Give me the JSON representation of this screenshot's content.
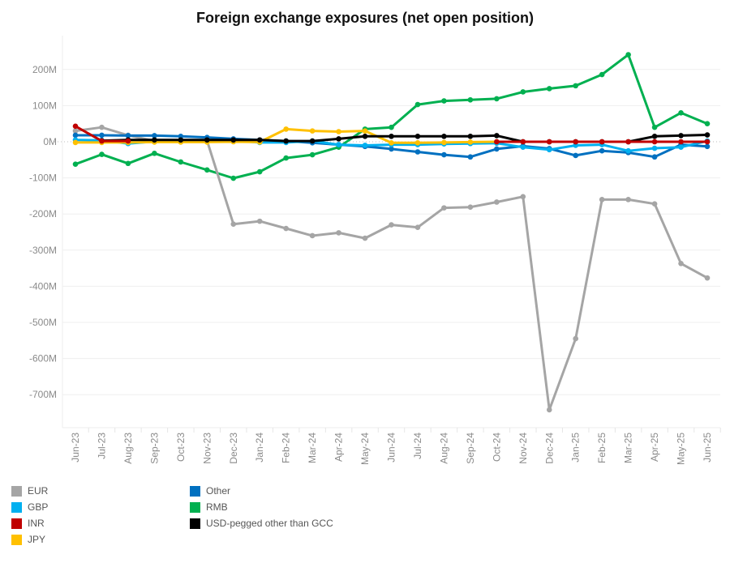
{
  "chart_data": {
    "type": "line",
    "title": "Foreign exchange exposures (net open position)",
    "xlabel": "",
    "ylabel": "",
    "ylim": [
      -790,
      260
    ],
    "yticks": [
      200,
      100,
      0,
      -100,
      -200,
      -300,
      -400,
      -500,
      -600,
      -700
    ],
    "ytick_labels": [
      "200M",
      "100M",
      "0M",
      "-100M",
      "-200M",
      "-300M",
      "-400M",
      "-500M",
      "-600M",
      "-700M"
    ],
    "categories": [
      "Jun-23",
      "Jul-23",
      "Aug-23",
      "Sep-23",
      "Oct-23",
      "Nov-23",
      "Dec-23",
      "Jan-24",
      "Feb-24",
      "Mar-24",
      "Apr-24",
      "May-24",
      "Jun-24",
      "Jul-24",
      "Aug-24",
      "Sep-24",
      "Oct-24",
      "Nov-24",
      "Dec-24",
      "Jan-25",
      "Feb-25",
      "Mar-25",
      "Apr-25",
      "May-25",
      "Jun-25"
    ],
    "grid": true,
    "legend_position": "bottom-left",
    "series": [
      {
        "name": "EUR",
        "color": "#a5a5a5",
        "values": [
          30,
          40,
          18,
          2,
          2,
          3,
          -228,
          -220,
          -240,
          -260,
          -252,
          -267,
          -230,
          -237,
          -183,
          -181,
          -167,
          -152,
          -742,
          -545,
          -160,
          -160,
          -172,
          -337,
          -377
        ]
      },
      {
        "name": "GBP",
        "color": "#00b0f0",
        "values": [
          5,
          4,
          -5,
          1,
          1,
          4,
          3,
          -2,
          -2,
          2,
          -8,
          -10,
          -8,
          -8,
          -6,
          -5,
          -4,
          -15,
          -22,
          -10,
          -8,
          -25,
          -18,
          -15,
          2
        ]
      },
      {
        "name": "INR",
        "color": "#c00000",
        "values": [
          43,
          2,
          2,
          null,
          null,
          null,
          null,
          null,
          null,
          null,
          null,
          null,
          null,
          null,
          null,
          null,
          0,
          0,
          0,
          0,
          0,
          0,
          0,
          0,
          0
        ]
      },
      {
        "name": "JPY",
        "color": "#ffc000",
        "values": [
          -2,
          -2,
          -2,
          -1,
          -1,
          -1,
          0,
          -1,
          35,
          30,
          28,
          30,
          -3,
          -3,
          -2,
          -1,
          0,
          null,
          null,
          null,
          null,
          null,
          null,
          null,
          null
        ]
      },
      {
        "name": "Other",
        "color": "#0070c0",
        "values": [
          18,
          18,
          17,
          17,
          15,
          12,
          8,
          5,
          2,
          -3,
          -8,
          -13,
          -20,
          -28,
          -36,
          -42,
          -20,
          -12,
          -19,
          -38,
          -25,
          -30,
          -42,
          -8,
          -13
        ]
      },
      {
        "name": "RMB",
        "color": "#00b050",
        "values": [
          -62,
          -35,
          -60,
          -32,
          -56,
          -78,
          -101,
          -83,
          -45,
          -36,
          -15,
          35,
          40,
          103,
          113,
          116,
          119,
          138,
          147,
          155,
          186,
          241,
          40,
          80,
          50
        ]
      },
      {
        "name": "USD-pegged other than GCC",
        "color": "#000000",
        "values": [
          null,
          3,
          5,
          5,
          5,
          5,
          5,
          5,
          2,
          2,
          8,
          15,
          15,
          15,
          15,
          15,
          17,
          0,
          0,
          0,
          0,
          0,
          15,
          17,
          19
        ]
      }
    ]
  },
  "legend": {
    "items": [
      {
        "label": "EUR",
        "color": "#a5a5a5"
      },
      {
        "label": "GBP",
        "color": "#00b0f0"
      },
      {
        "label": "INR",
        "color": "#c00000"
      },
      {
        "label": "JPY",
        "color": "#ffc000"
      },
      {
        "label": "Other",
        "color": "#0070c0"
      },
      {
        "label": "RMB",
        "color": "#00b050"
      },
      {
        "label": "USD-pegged other than GCC",
        "color": "#000000"
      }
    ]
  }
}
